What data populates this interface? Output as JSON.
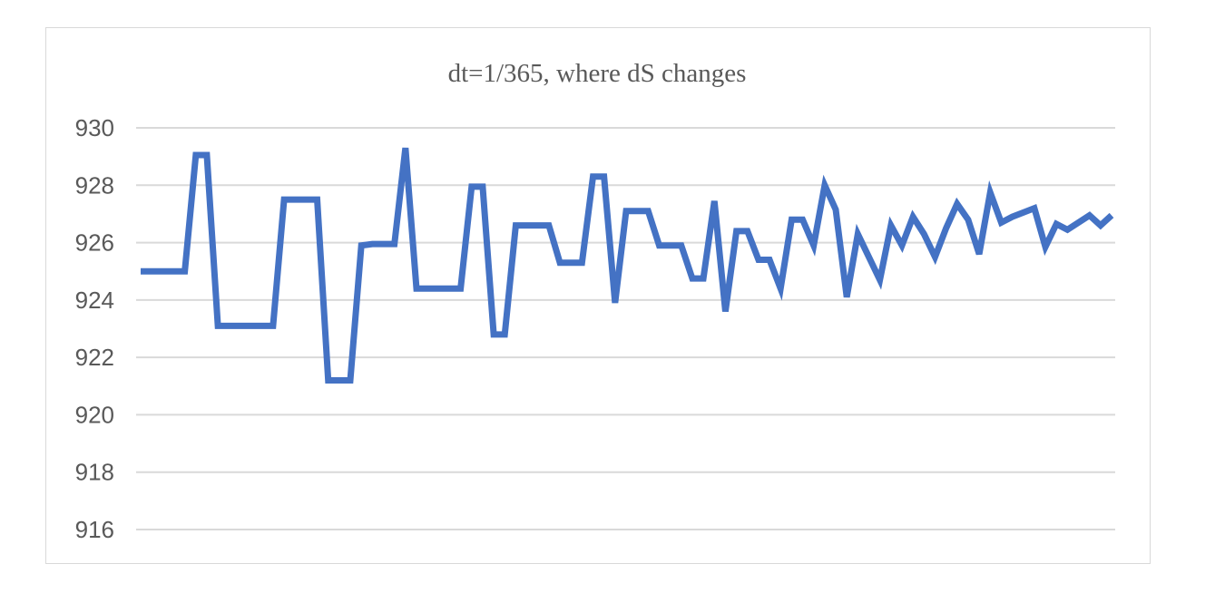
{
  "chart_data": {
    "type": "line",
    "title": "dt=1/365, where dS changes",
    "xlabel": "",
    "ylabel": "",
    "ylim": [
      916,
      930
    ],
    "yticks": [
      "930",
      "928",
      "926",
      "924",
      "922",
      "920",
      "918",
      "916"
    ],
    "yticks_values": [
      930,
      928,
      926,
      924,
      922,
      920,
      918,
      916
    ],
    "grid": true,
    "legend": "none",
    "color": "#4472c4",
    "series": [
      {
        "values": [
          925.0,
          925.0,
          925.0,
          925.0,
          925.0,
          929.05,
          929.05,
          923.1,
          923.1,
          923.1,
          923.1,
          923.1,
          923.1,
          927.5,
          927.5,
          927.5,
          927.5,
          921.2,
          921.2,
          921.2,
          925.9,
          925.95,
          925.95,
          925.95,
          929.3,
          924.4,
          924.4,
          924.4,
          924.4,
          924.4,
          927.95,
          927.95,
          922.8,
          922.8,
          926.6,
          926.6,
          926.6,
          926.6,
          925.3,
          925.3,
          925.3,
          928.3,
          928.3,
          923.9,
          927.1,
          927.1,
          927.1,
          925.9,
          925.9,
          925.9,
          924.75,
          924.75,
          927.45,
          923.6,
          926.4,
          926.4,
          925.4,
          925.4,
          924.4,
          926.8,
          926.8,
          925.9,
          928.0,
          927.15,
          924.1,
          926.3,
          925.5,
          924.7,
          926.6,
          925.9,
          926.9,
          926.3,
          925.5,
          926.5,
          927.35,
          926.8,
          925.6,
          927.75,
          926.7,
          926.9,
          927.05,
          927.2,
          925.85,
          926.65,
          926.45,
          926.7,
          926.95,
          926.6,
          926.95
        ]
      }
    ]
  }
}
